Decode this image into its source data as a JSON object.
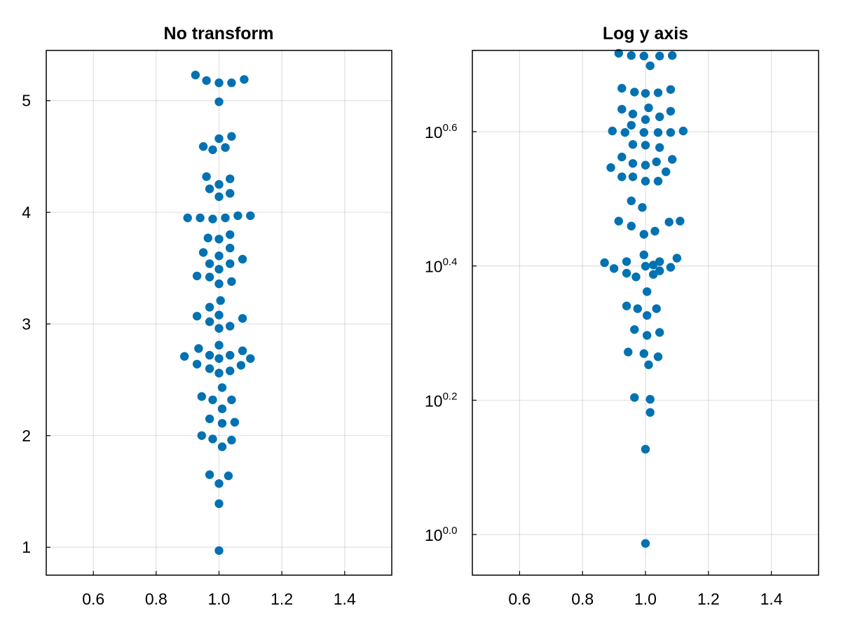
{
  "chart_data": [
    {
      "type": "scatter",
      "title": "No transform",
      "xlabel": "",
      "ylabel": "",
      "y_scale": "linear",
      "xlim": [
        0.45,
        1.55
      ],
      "ylim": [
        0.75,
        5.45
      ],
      "x_ticks": [
        0.6,
        0.8,
        1.0,
        1.2,
        1.4
      ],
      "x_tick_labels": [
        "0.6",
        "0.8",
        "1.0",
        "1.2",
        "1.4"
      ],
      "y_ticks": [
        1,
        2,
        3,
        4,
        5
      ],
      "y_tick_labels": [
        "1",
        "2",
        "3",
        "4",
        "5"
      ],
      "grid": true,
      "marker_color": "#0072b2",
      "points": [
        [
          0.925,
          5.23
        ],
        [
          0.96,
          5.18
        ],
        [
          1.0,
          5.16
        ],
        [
          1.04,
          5.16
        ],
        [
          1.08,
          5.19
        ],
        [
          1.0,
          4.99
        ],
        [
          1.0,
          4.66
        ],
        [
          1.04,
          4.68
        ],
        [
          0.95,
          4.59
        ],
        [
          0.98,
          4.56
        ],
        [
          1.02,
          4.58
        ],
        [
          0.96,
          4.32
        ],
        [
          1.035,
          4.3
        ],
        [
          1.0,
          4.25
        ],
        [
          0.97,
          4.21
        ],
        [
          1.035,
          4.17
        ],
        [
          1.0,
          4.14
        ],
        [
          0.9,
          3.95
        ],
        [
          0.94,
          3.95
        ],
        [
          0.98,
          3.94
        ],
        [
          1.02,
          3.95
        ],
        [
          1.06,
          3.97
        ],
        [
          1.1,
          3.97
        ],
        [
          1.035,
          3.8
        ],
        [
          0.965,
          3.77
        ],
        [
          1.0,
          3.76
        ],
        [
          1.035,
          3.68
        ],
        [
          0.95,
          3.64
        ],
        [
          1.0,
          3.61
        ],
        [
          1.075,
          3.58
        ],
        [
          0.97,
          3.54
        ],
        [
          1.035,
          3.54
        ],
        [
          1.0,
          3.49
        ],
        [
          0.93,
          3.43
        ],
        [
          0.97,
          3.42
        ],
        [
          1.0,
          3.36
        ],
        [
          1.04,
          3.38
        ],
        [
          1.005,
          3.21
        ],
        [
          0.97,
          3.15
        ],
        [
          1.0,
          3.08
        ],
        [
          0.93,
          3.07
        ],
        [
          1.075,
          3.05
        ],
        [
          0.97,
          3.02
        ],
        [
          1.035,
          2.98
        ],
        [
          1.0,
          2.96
        ],
        [
          1.0,
          2.81
        ],
        [
          0.935,
          2.78
        ],
        [
          1.075,
          2.76
        ],
        [
          0.97,
          2.72
        ],
        [
          1.035,
          2.72
        ],
        [
          0.89,
          2.71
        ],
        [
          1.0,
          2.69
        ],
        [
          1.1,
          2.69
        ],
        [
          0.93,
          2.64
        ],
        [
          1.07,
          2.63
        ],
        [
          0.97,
          2.6
        ],
        [
          1.035,
          2.58
        ],
        [
          1.0,
          2.56
        ],
        [
          1.01,
          2.43
        ],
        [
          0.945,
          2.35
        ],
        [
          0.98,
          2.32
        ],
        [
          1.04,
          2.32
        ],
        [
          1.01,
          2.24
        ],
        [
          0.97,
          2.15
        ],
        [
          1.05,
          2.12
        ],
        [
          1.01,
          2.11
        ],
        [
          0.945,
          2.0
        ],
        [
          0.98,
          1.97
        ],
        [
          1.04,
          1.96
        ],
        [
          1.01,
          1.9
        ],
        [
          0.97,
          1.65
        ],
        [
          1.03,
          1.64
        ],
        [
          1.0,
          1.57
        ],
        [
          1.0,
          1.39
        ],
        [
          1.0,
          0.97
        ]
      ]
    },
    {
      "type": "scatter",
      "title": "Log y axis",
      "xlabel": "",
      "ylabel": "",
      "y_scale": "log10",
      "xlim": [
        0.45,
        1.55
      ],
      "ylim": [
        0.87,
        5.26
      ],
      "x_ticks": [
        0.6,
        0.8,
        1.0,
        1.2,
        1.4
      ],
      "x_tick_labels": [
        "0.6",
        "0.8",
        "1.0",
        "1.2",
        "1.4"
      ],
      "y_ticks": [
        1.0,
        1.585,
        2.512,
        3.981
      ],
      "y_tick_labels": [
        {
          "base": "10",
          "exp": "0.0"
        },
        {
          "base": "10",
          "exp": "0.2"
        },
        {
          "base": "10",
          "exp": "0.4"
        },
        {
          "base": "10",
          "exp": "0.6"
        }
      ],
      "grid": true,
      "marker_color": "#0072b2",
      "points": [
        [
          0.915,
          5.21
        ],
        [
          0.955,
          5.17
        ],
        [
          0.995,
          5.16
        ],
        [
          1.045,
          5.16
        ],
        [
          1.085,
          5.17
        ],
        [
          1.015,
          4.99
        ],
        [
          0.925,
          4.62
        ],
        [
          0.965,
          4.56
        ],
        [
          1.0,
          4.54
        ],
        [
          1.04,
          4.55
        ],
        [
          1.08,
          4.6
        ],
        [
          0.925,
          4.3
        ],
        [
          0.96,
          4.23
        ],
        [
          1.01,
          4.32
        ],
        [
          1.045,
          4.19
        ],
        [
          1.08,
          4.27
        ],
        [
          1.0,
          4.15
        ],
        [
          0.955,
          4.07
        ],
        [
          0.895,
          3.99
        ],
        [
          0.935,
          3.97
        ],
        [
          0.995,
          3.97
        ],
        [
          1.04,
          3.97
        ],
        [
          1.08,
          3.97
        ],
        [
          1.12,
          3.99
        ],
        [
          0.96,
          3.81
        ],
        [
          1.0,
          3.8
        ],
        [
          1.045,
          3.77
        ],
        [
          0.925,
          3.65
        ],
        [
          0.96,
          3.57
        ],
        [
          1.0,
          3.55
        ],
        [
          1.035,
          3.59
        ],
        [
          1.085,
          3.62
        ],
        [
          0.89,
          3.52
        ],
        [
          1.065,
          3.47
        ],
        [
          0.925,
          3.41
        ],
        [
          0.96,
          3.41
        ],
        [
          1.0,
          3.36
        ],
        [
          1.04,
          3.36
        ],
        [
          0.955,
          3.14
        ],
        [
          0.99,
          3.07
        ],
        [
          0.915,
          2.93
        ],
        [
          0.955,
          2.88
        ],
        [
          1.075,
          2.92
        ],
        [
          1.03,
          2.83
        ],
        [
          1.11,
          2.93
        ],
        [
          0.995,
          2.8
        ],
        [
          0.995,
          2.61
        ],
        [
          1.1,
          2.58
        ],
        [
          1.045,
          2.55
        ],
        [
          0.87,
          2.54
        ],
        [
          0.94,
          2.55
        ],
        [
          1.0,
          2.51
        ],
        [
          1.025,
          2.52
        ],
        [
          1.08,
          2.5
        ],
        [
          0.9,
          2.49
        ],
        [
          1.045,
          2.47
        ],
        [
          0.94,
          2.45
        ],
        [
          0.97,
          2.42
        ],
        [
          1.025,
          2.44
        ],
        [
          1.005,
          2.3
        ],
        [
          0.94,
          2.19
        ],
        [
          0.975,
          2.17
        ],
        [
          1.035,
          2.17
        ],
        [
          1.005,
          2.12
        ],
        [
          0.965,
          2.02
        ],
        [
          1.045,
          2.0
        ],
        [
          1.005,
          1.98
        ],
        [
          0.945,
          1.87
        ],
        [
          0.995,
          1.86
        ],
        [
          1.04,
          1.84
        ],
        [
          1.01,
          1.79
        ],
        [
          0.965,
          1.6
        ],
        [
          1.015,
          1.59
        ],
        [
          1.015,
          1.52
        ],
        [
          1.0,
          1.34
        ],
        [
          1.0,
          0.97
        ]
      ]
    }
  ]
}
